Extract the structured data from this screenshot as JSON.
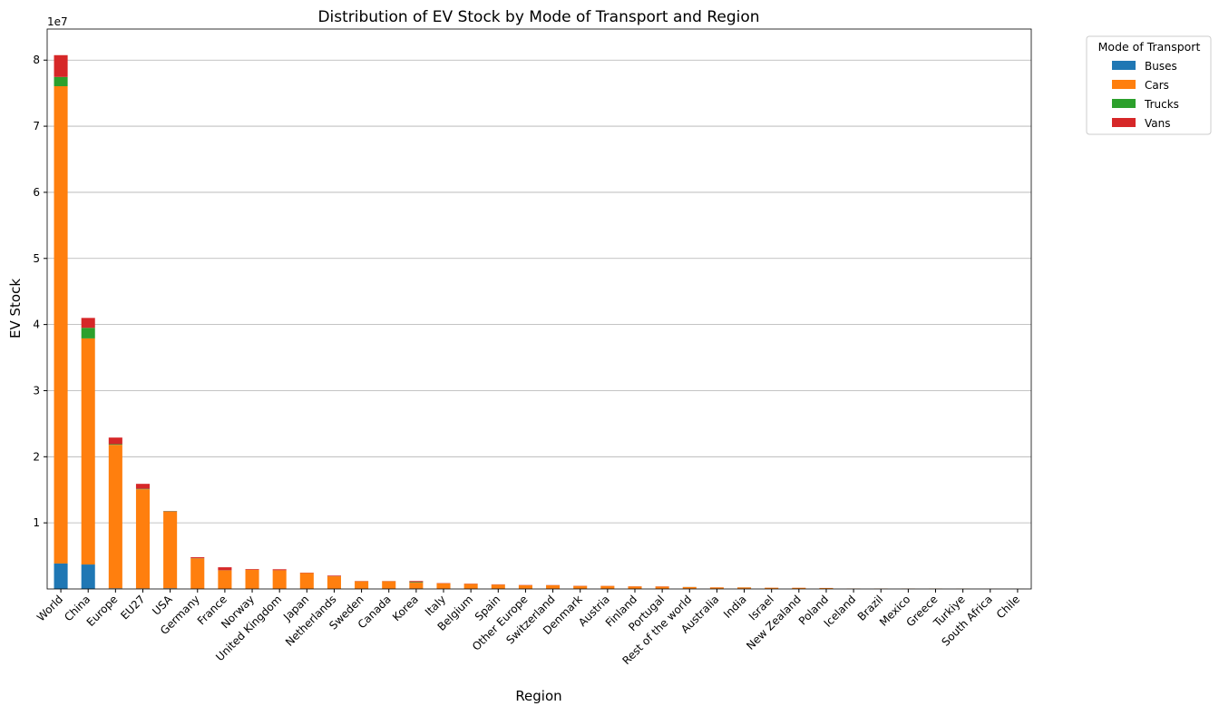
{
  "chart_data": {
    "type": "stacked_bar",
    "title": "Distribution of EV Stock by Mode of Transport and Region",
    "xlabel": "Region",
    "ylabel": "EV Stock",
    "y_offset_text": "1e7",
    "legend_title": "Mode of Transport",
    "legend": "upper right outside",
    "grid": "y",
    "categories": [
      "World",
      "China",
      "Europe",
      "EU27",
      "USA",
      "Germany",
      "France",
      "Norway",
      "United Kingdom",
      "Japan",
      "Netherlands",
      "Sweden",
      "Canada",
      "Korea",
      "Italy",
      "Belgium",
      "Spain",
      "Other Europe",
      "Switzerland",
      "Denmark",
      "Austria",
      "Finland",
      "Portugal",
      "Rest of the world",
      "Australia",
      "India",
      "Israel",
      "New Zealand",
      "Poland",
      "Iceland",
      "Brazil",
      "Mexico",
      "Greece",
      "Turkiye",
      "South Africa",
      "Chile"
    ],
    "series": [
      {
        "name": "Buses",
        "color": "#1f77b4",
        "values": [
          3850000,
          3700000,
          100000,
          80000,
          100000,
          20000,
          10000,
          10000,
          20000,
          10000,
          10000,
          5000,
          10000,
          50000,
          5000,
          5000,
          5000,
          5000,
          5000,
          3000,
          3000,
          2000,
          2000,
          30000,
          2000,
          20000,
          2000,
          1000,
          5000,
          500,
          1000,
          1000,
          500,
          1000,
          500,
          2000
        ]
      },
      {
        "name": "Cars",
        "color": "#ff7f0e",
        "values": [
          72200000,
          34200000,
          21700000,
          15000000,
          11600000,
          4600000,
          2800000,
          2900000,
          2800000,
          2400000,
          1900000,
          1150000,
          1150000,
          900000,
          850000,
          750000,
          650000,
          550000,
          550000,
          450000,
          450000,
          380000,
          350000,
          250000,
          230000,
          200000,
          180000,
          170000,
          130000,
          40000,
          40000,
          35000,
          35000,
          25000,
          8000,
          7000
        ]
      },
      {
        "name": "Trucks",
        "color": "#2ca02c",
        "values": [
          1400000,
          1600000,
          100000,
          70000,
          50000,
          30000,
          20000,
          5000,
          10000,
          5000,
          10000,
          5000,
          5000,
          100000,
          5000,
          5000,
          5000,
          5000,
          5000,
          3000,
          3000,
          2000,
          2000,
          10000,
          1000,
          10000,
          1000,
          1000,
          2000,
          500,
          1000,
          500,
          500,
          500,
          200,
          500
        ]
      },
      {
        "name": "Vans",
        "color": "#d62728",
        "values": [
          3300000,
          1500000,
          1000000,
          750000,
          50000,
          150000,
          450000,
          100000,
          150000,
          50000,
          100000,
          40000,
          30000,
          150000,
          40000,
          40000,
          40000,
          40000,
          30000,
          30000,
          20000,
          20000,
          30000,
          10000,
          10000,
          10000,
          10000,
          10000,
          10000,
          5000,
          5000,
          5000,
          5000,
          3000,
          1000,
          1000
        ]
      }
    ],
    "ylim": [
      0,
      84700000
    ],
    "yticks": [
      {
        "value": 10000000,
        "label": "1"
      },
      {
        "value": 20000000,
        "label": "2"
      },
      {
        "value": 30000000,
        "label": "3"
      },
      {
        "value": 40000000,
        "label": "4"
      },
      {
        "value": 50000000,
        "label": "5"
      },
      {
        "value": 60000000,
        "label": "6"
      },
      {
        "value": 70000000,
        "label": "7"
      },
      {
        "value": 80000000,
        "label": "8"
      }
    ]
  }
}
